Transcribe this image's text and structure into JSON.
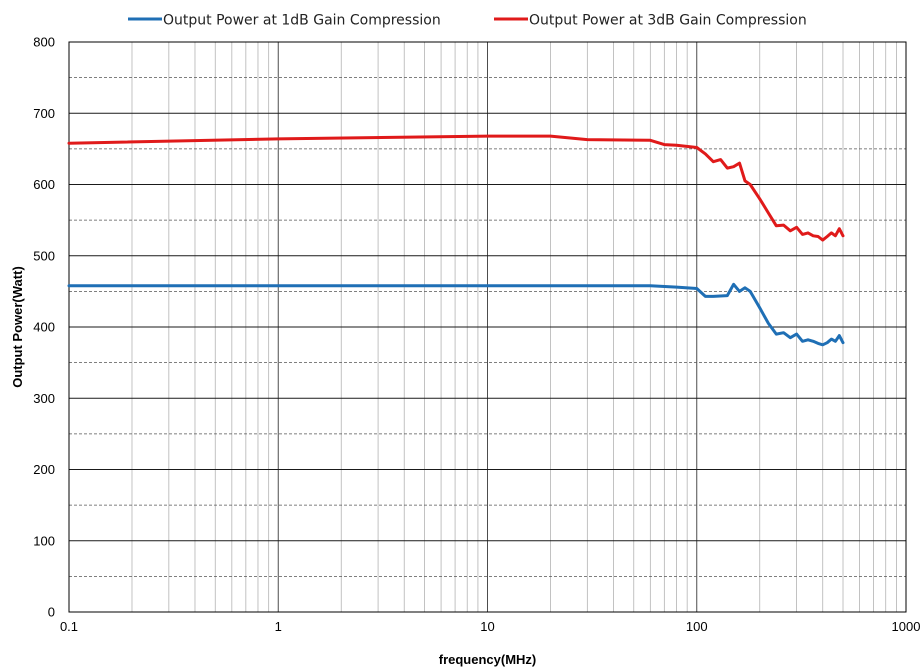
{
  "chart_data": {
    "type": "line",
    "xscale": "log",
    "xlim": [
      0.1,
      1000
    ],
    "ylim": [
      0,
      800
    ],
    "xlabel": "frequency(MHz)",
    "ylabel": "Output Power(Watt)",
    "x_tick_labels": [
      "0.1",
      "1",
      "10",
      "100",
      "1000"
    ],
    "y_tick_labels": [
      "0",
      "100",
      "200",
      "300",
      "400",
      "500",
      "600",
      "700",
      "800"
    ],
    "y_major_step": 100,
    "y_minor_step": 50,
    "grid": true,
    "legend_position": "top",
    "series": [
      {
        "name": "Output Power at 1dB Gain Compression",
        "color": "#1f6fb5",
        "x": [
          0.1,
          1,
          10,
          30,
          60,
          80,
          100,
          110,
          120,
          140,
          150,
          160,
          170,
          180,
          200,
          220,
          240,
          260,
          280,
          300,
          320,
          340,
          360,
          380,
          400,
          420,
          440,
          460,
          480,
          500
        ],
        "y": [
          458,
          458,
          458,
          458,
          458,
          456,
          454,
          443,
          443,
          444,
          460,
          450,
          455,
          450,
          427,
          405,
          390,
          392,
          385,
          390,
          380,
          382,
          380,
          377,
          375,
          378,
          383,
          380,
          388,
          378
        ]
      },
      {
        "name": "Output Power at 3dB Gain Compression",
        "color": "#e01a1a",
        "x": [
          0.1,
          1,
          10,
          20,
          30,
          60,
          70,
          80,
          100,
          110,
          120,
          130,
          140,
          150,
          160,
          170,
          180,
          200,
          220,
          240,
          260,
          280,
          300,
          320,
          340,
          360,
          380,
          400,
          420,
          440,
          460,
          480,
          500
        ],
        "y": [
          658,
          664,
          668,
          668,
          663,
          662,
          656,
          655,
          652,
          643,
          632,
          635,
          623,
          625,
          630,
          605,
          600,
          580,
          560,
          542,
          543,
          535,
          540,
          530,
          532,
          528,
          527,
          522,
          527,
          532,
          528,
          538,
          528
        ]
      }
    ]
  }
}
